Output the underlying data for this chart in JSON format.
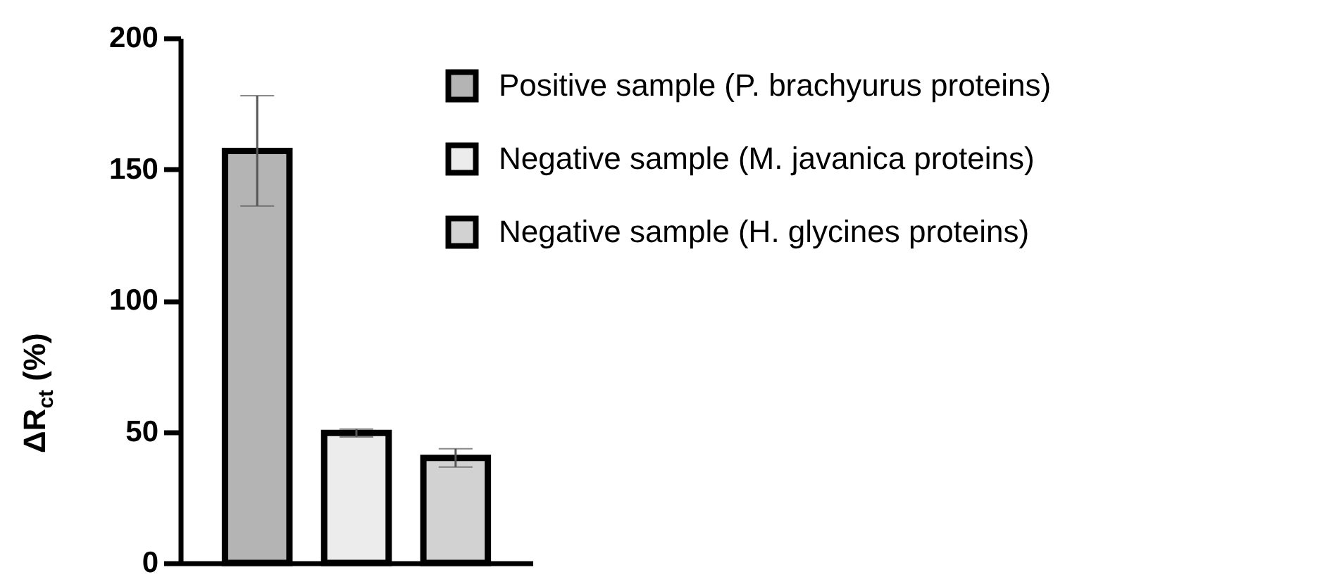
{
  "chart_data": {
    "type": "bar",
    "ylabel": "ΔR$_{ct}$ (%)",
    "categories": [
      null,
      null,
      null
    ],
    "series": [
      {
        "name": "Positive sample (P. brachyurus proteins)",
        "color": "#b4b4b4",
        "values": [
          157,
          null,
          null
        ],
        "errors": [
          21,
          null,
          null
        ]
      },
      {
        "name": "Negative sample (M. javanica proteins)",
        "color": "#ececec",
        "values": [
          null,
          49.5,
          null
        ],
        "errors": [
          null,
          1.5,
          null
        ]
      },
      {
        "name": "Negative sample (H. glycines proteins)",
        "color": "#d2d2d2",
        "values": [
          null,
          null,
          40
        ],
        "errors": [
          null,
          null,
          3.5
        ]
      }
    ],
    "ylim": [
      0,
      200
    ],
    "yticks": [
      0,
      50,
      100,
      150,
      200
    ],
    "grid": false,
    "legend": "top right",
    "tick_labels": "y"
  }
}
